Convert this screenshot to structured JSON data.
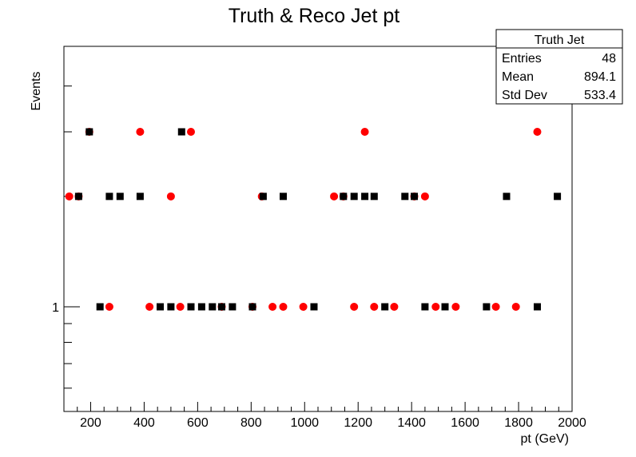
{
  "chart_data": {
    "type": "scatter",
    "title": "Truth & Reco Jet pt",
    "xlabel": "pt (GeV)",
    "ylabel": "Events",
    "xlim": [
      100,
      2000
    ],
    "y_scale": "log",
    "x_ticks": [
      200,
      400,
      600,
      800,
      1000,
      1200,
      1400,
      1600,
      1800,
      2000
    ],
    "y_tick_labels": [
      {
        "value": 1,
        "label": "1"
      }
    ],
    "grid": false,
    "stats_box": {
      "title": "Truth Jet",
      "rows": [
        {
          "label": "Entries",
          "value": "48"
        },
        {
          "label": "Mean",
          "value": "894.1"
        },
        {
          "label": "Std Dev",
          "value": "533.4"
        }
      ],
      "placement": "top-right"
    },
    "series": [
      {
        "marker": "circle",
        "color": "#ff0000",
        "points": [
          [
            120,
            2
          ],
          [
            155,
            2
          ],
          [
            195,
            3
          ],
          [
            270,
            1
          ],
          [
            385,
            3
          ],
          [
            420,
            1
          ],
          [
            500,
            2
          ],
          [
            535,
            1
          ],
          [
            575,
            3
          ],
          [
            690,
            1
          ],
          [
            805,
            1
          ],
          [
            840,
            2
          ],
          [
            880,
            1
          ],
          [
            920,
            1
          ],
          [
            995,
            1
          ],
          [
            1110,
            2
          ],
          [
            1145,
            2
          ],
          [
            1185,
            1
          ],
          [
            1225,
            3
          ],
          [
            1260,
            1
          ],
          [
            1335,
            1
          ],
          [
            1410,
            2
          ],
          [
            1450,
            2
          ],
          [
            1490,
            1
          ],
          [
            1565,
            1
          ],
          [
            1715,
            1
          ],
          [
            1790,
            1
          ],
          [
            1870,
            3
          ]
        ]
      },
      {
        "marker": "square",
        "color": "#000000",
        "points": [
          [
            155,
            2
          ],
          [
            195,
            3
          ],
          [
            235,
            1
          ],
          [
            270,
            2
          ],
          [
            310,
            2
          ],
          [
            385,
            2
          ],
          [
            460,
            1
          ],
          [
            500,
            1
          ],
          [
            540,
            3
          ],
          [
            575,
            1
          ],
          [
            615,
            1
          ],
          [
            655,
            1
          ],
          [
            690,
            1
          ],
          [
            730,
            1
          ],
          [
            805,
            1
          ],
          [
            845,
            2
          ],
          [
            920,
            2
          ],
          [
            1035,
            1
          ],
          [
            1145,
            2
          ],
          [
            1185,
            2
          ],
          [
            1225,
            2
          ],
          [
            1260,
            2
          ],
          [
            1300,
            1
          ],
          [
            1375,
            2
          ],
          [
            1410,
            2
          ],
          [
            1450,
            1
          ],
          [
            1525,
            1
          ],
          [
            1680,
            1
          ],
          [
            1755,
            2
          ],
          [
            1870,
            1
          ],
          [
            1945,
            2
          ]
        ]
      }
    ]
  }
}
